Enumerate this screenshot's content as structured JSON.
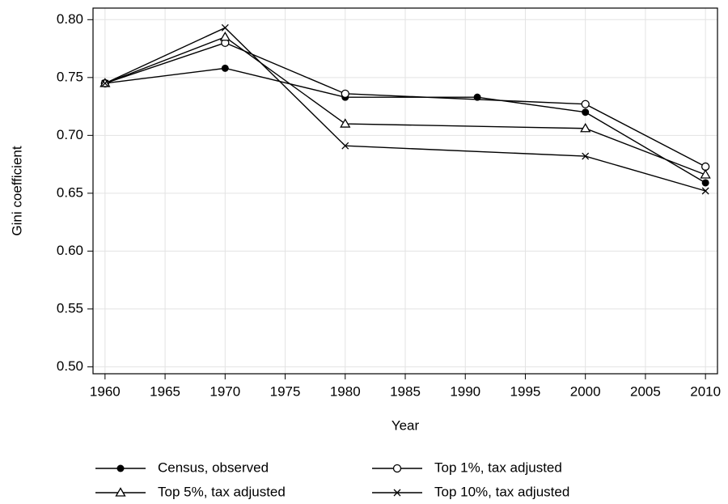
{
  "chart_data": {
    "type": "line",
    "xlabel": "Year",
    "ylabel": "Gini coefficient",
    "xlim": [
      1959,
      2011
    ],
    "ylim": [
      0.494,
      0.81
    ],
    "xticks": [
      1960,
      1965,
      1970,
      1975,
      1980,
      1985,
      1990,
      1995,
      2000,
      2005,
      2010
    ],
    "yticks": [
      {
        "value": 0.5,
        "label": "0.50"
      },
      {
        "value": 0.55,
        "label": "0.55"
      },
      {
        "value": 0.6,
        "label": "0.60"
      },
      {
        "value": 0.65,
        "label": "0.65"
      },
      {
        "value": 0.7,
        "label": "0.70"
      },
      {
        "value": 0.75,
        "label": "0.75"
      },
      {
        "value": 0.8,
        "label": "0.80"
      }
    ],
    "grid": true,
    "legend": "bottom",
    "series": [
      {
        "name": "Census, observed",
        "color": "#000000",
        "marker": "filled-circle",
        "x": [
          1960,
          1970,
          1980,
          1991,
          2000,
          2010
        ],
        "values": [
          0.745,
          0.758,
          0.733,
          0.733,
          0.72,
          0.659
        ]
      },
      {
        "name": "Top 1%, tax adjusted",
        "color": "#000000",
        "marker": "open-circle",
        "x": [
          1960,
          1970,
          1980,
          2000,
          2010
        ],
        "values": [
          0.745,
          0.78,
          0.736,
          0.727,
          0.673
        ]
      },
      {
        "name": "Top 5%, tax adjusted",
        "color": "#000000",
        "marker": "triangle",
        "x": [
          1960,
          1970,
          1980,
          2000,
          2010
        ],
        "values": [
          0.745,
          0.785,
          0.71,
          0.706,
          0.666
        ]
      },
      {
        "name": "Top 10%, tax adjusted",
        "color": "#000000",
        "marker": "x",
        "x": [
          1960,
          1970,
          1980,
          2000,
          2010
        ],
        "values": [
          0.745,
          0.793,
          0.691,
          0.682,
          0.652
        ]
      }
    ]
  }
}
